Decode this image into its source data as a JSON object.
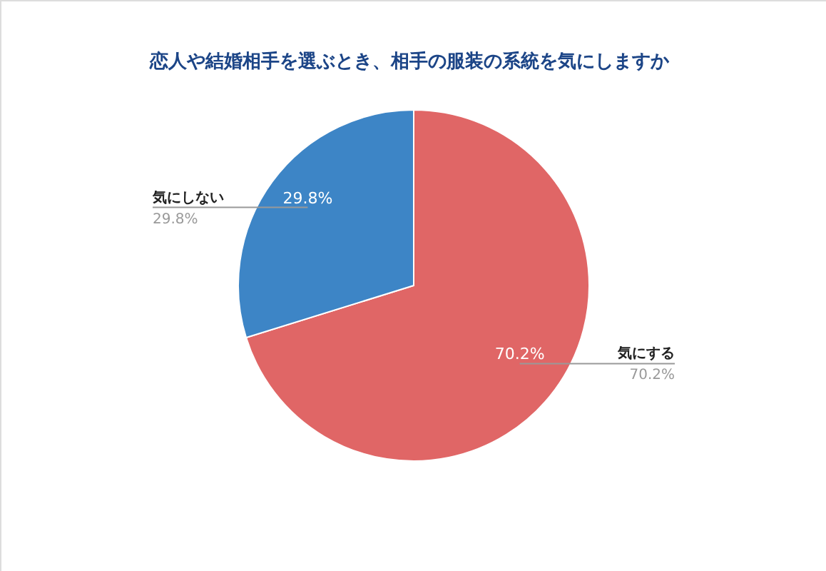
{
  "chart_data": {
    "type": "pie",
    "title": "恋人や結婚相手を選ぶとき、相手の服装の系統を気にしますか",
    "categories": [
      "気にする",
      "気にしない"
    ],
    "values": [
      70.2,
      29.8
    ],
    "value_labels": [
      "70.2%",
      "29.8%"
    ],
    "colors": [
      "#e06666",
      "#3d85c6"
    ]
  }
}
